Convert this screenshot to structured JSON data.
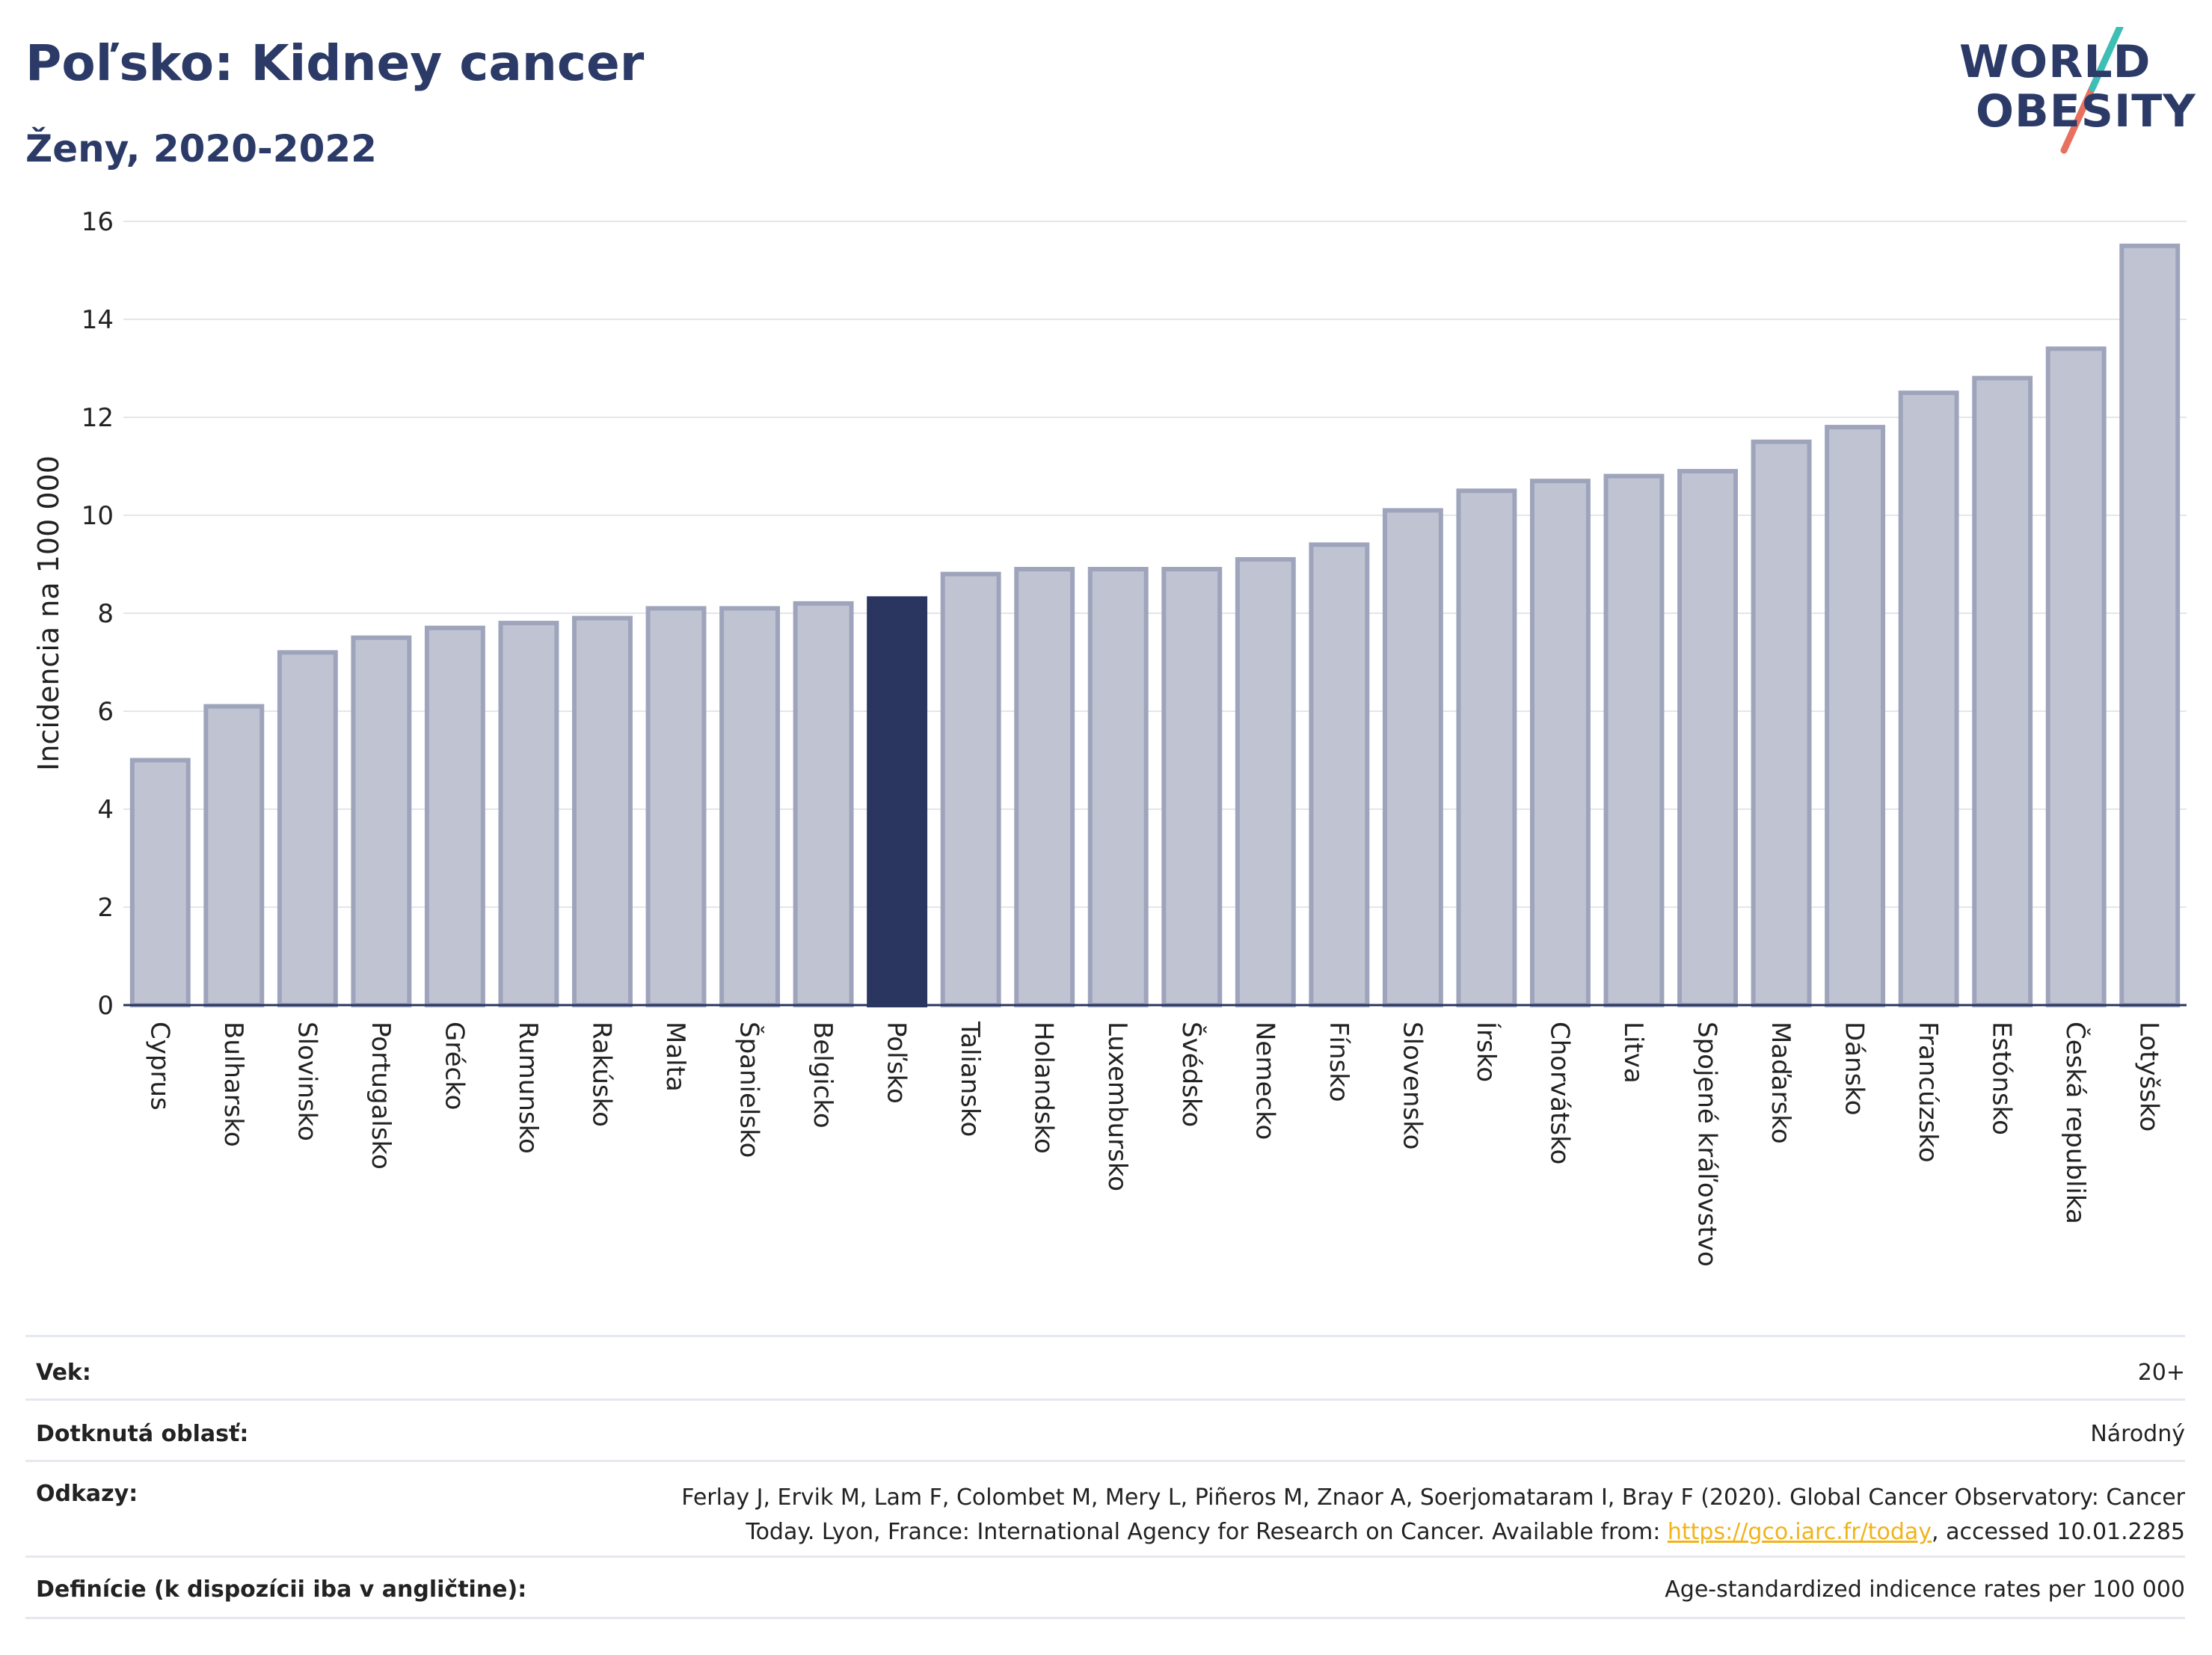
{
  "title": "Poľsko: Kidney cancer",
  "subtitle": "Ženy, 2020-2022",
  "logo": {
    "line1": "WORLD",
    "line2": "OBESITY"
  },
  "colors": {
    "bar": "#c0c4d2",
    "bar_stroke": "#9ea4bb",
    "highlight": "#2a3560",
    "grid": "#e4e6ec",
    "accent_teal": "#3cc0b6",
    "accent_red": "#e8705f"
  },
  "chart_data": {
    "type": "bar",
    "ylabel": "Incidencia na 100 000",
    "ylim": [
      0,
      16
    ],
    "yticks": [
      0,
      2,
      4,
      6,
      8,
      10,
      12,
      14,
      16
    ],
    "highlight": "Poľsko",
    "categories": [
      "Cyprus",
      "Bulharsko",
      "Slovinsko",
      "Portugalsko",
      "Grécko",
      "Rumunsko",
      "Rakúsko",
      "Malta",
      "Španielsko",
      "Belgicko",
      "Poľsko",
      "Taliansko",
      "Holandsko",
      "Luxembursko",
      "Švédsko",
      "Nemecko",
      "Fínsko",
      "Slovensko",
      "Írsko",
      "Chorvátsko",
      "Litva",
      "Spojené kráľovstvo",
      "Maďarsko",
      "Dánsko",
      "Francúzsko",
      "Estónsko",
      "Česká republika",
      "Lotyšsko"
    ],
    "values": [
      5.0,
      6.1,
      7.2,
      7.5,
      7.7,
      7.8,
      7.9,
      8.1,
      8.1,
      8.2,
      8.3,
      8.8,
      8.9,
      8.9,
      8.9,
      9.1,
      9.4,
      10.1,
      10.5,
      10.7,
      10.8,
      10.9,
      11.5,
      11.8,
      12.5,
      12.8,
      13.4,
      15.5
    ]
  },
  "meta": {
    "vek_label": "Vek:",
    "vek_value": "20+",
    "oblast_label": "Dotknutá oblasť:",
    "oblast_value": "Národný",
    "odkazy_label": "Odkazy:",
    "odkazy_line1": "Ferlay J, Ervik M, Lam F, Colombet M, Mery L, Piñeros M, Znaor A, Soerjomataram I, Bray F (2020). Global Cancer Observatory: Cancer",
    "odkazy_line2_pre": "Today. Lyon, France: International Agency for Research on Cancer. Available from: ",
    "odkazy_link": "https://gco.iarc.fr/today",
    "odkazy_line2_post": ", accessed 10.01.2285",
    "definicie_label": "Definície (k dispozícii iba v angličtine):",
    "definicie_value": "Age-standardized indicence rates per 100 000"
  }
}
